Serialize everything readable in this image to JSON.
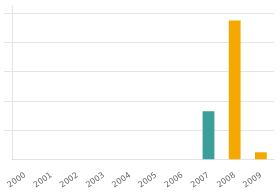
{
  "chart_data": {
    "type": "bar",
    "categories": [
      "2000",
      "2001",
      "2002",
      "2003",
      "2004",
      "2005",
      "2006",
      "2007",
      "2008",
      "2009"
    ],
    "values": [
      0,
      0,
      0,
      0,
      0,
      0,
      0,
      33,
      95,
      5
    ],
    "colors": [
      "#f5a800",
      "#f5a800",
      "#f5a800",
      "#f5a800",
      "#f5a800",
      "#f5a800",
      "#f5a800",
      "#3a9e9b",
      "#f5a800",
      "#f5a800"
    ],
    "ylim": [
      0,
      105
    ],
    "yticks": [
      20,
      40,
      60,
      80,
      100
    ],
    "grid": true,
    "tick_labels": "x"
  }
}
